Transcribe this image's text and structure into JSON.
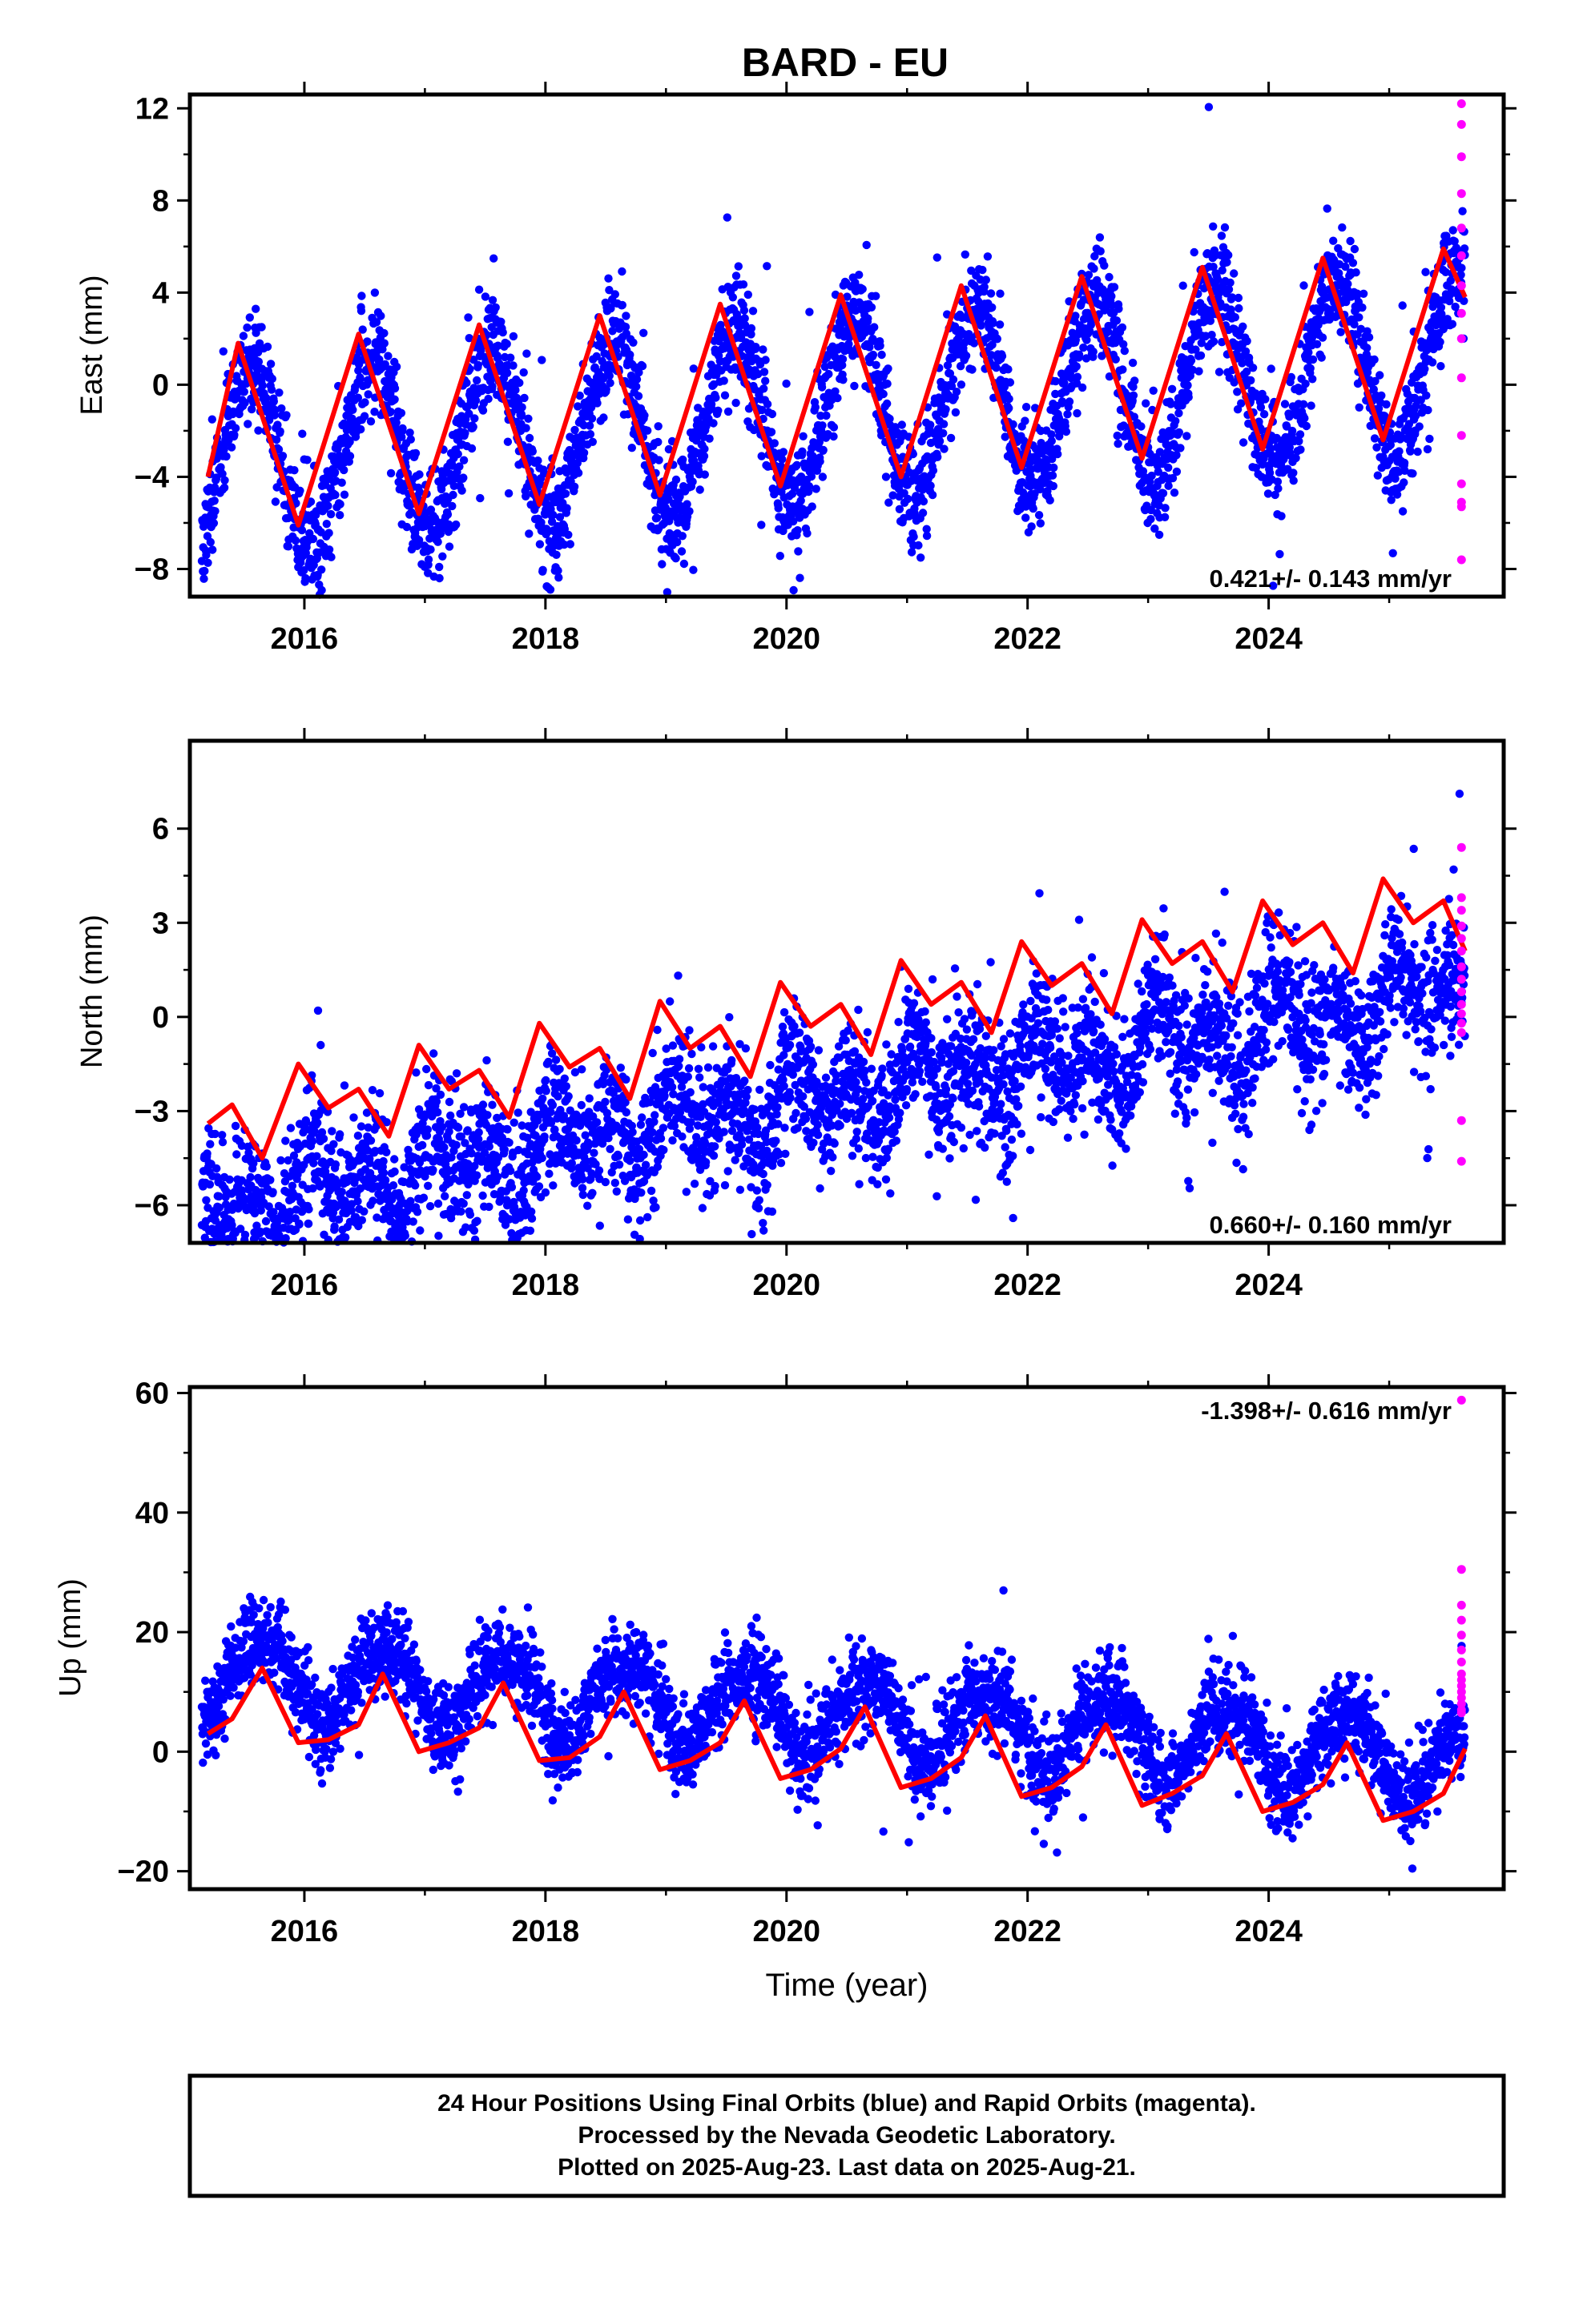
{
  "figure": {
    "title": "BARD - EU",
    "x_axis_label": "Time (year)",
    "footer_lines": [
      "24 Hour Positions Using Final Orbits (blue) and Rapid Orbits (magenta).",
      "Processed by the Nevada Geodetic Laboratory.",
      "Plotted on 2025-Aug-23. Last data on 2025-Aug-21."
    ]
  },
  "colors": {
    "final_orbits": "#0000ff",
    "rapid_orbits": "#ff00ff",
    "fit_curve": "#ff0000",
    "frame": "#000000"
  },
  "chart_data": [
    {
      "type": "scatter",
      "ylabel": "East (mm)",
      "xlabel": "",
      "xlim": [
        2015.05,
        2025.95
      ],
      "ylim": [
        -9.2,
        12.6
      ],
      "xticks": [
        "2016",
        "2018",
        "2020",
        "2022",
        "2024"
      ],
      "yticks": [
        "−8",
        "−4",
        "0",
        "4",
        "8",
        "12"
      ],
      "rate_label": "0.421+/- 0.143 mm/yr",
      "rate_position": "bottom-right",
      "model": {
        "start": 2015.15,
        "end": 2025.63,
        "rate_mm_per_yr": 0.421,
        "offset_mm": -1.3,
        "annual_cos": -3.68,
        "annual_sin": -1.4,
        "semiannual_cos": -0.1,
        "semiannual_sin": 0.1,
        "scatter_mm": 1.2
      },
      "fit_curve": {
        "x": [
          2015.2,
          2015.45,
          2015.95,
          2016.45,
          2016.95,
          2017.45,
          2017.95,
          2018.45,
          2018.95,
          2019.45,
          2019.95,
          2020.45,
          2020.95,
          2021.45,
          2021.95,
          2022.45,
          2022.95,
          2023.45,
          2023.95,
          2024.45,
          2024.95,
          2025.45,
          2025.63
        ],
        "y": [
          -4.0,
          1.8,
          -6.1,
          2.2,
          -5.6,
          2.6,
          -5.2,
          3.0,
          -4.8,
          3.5,
          -4.4,
          3.9,
          -4.0,
          4.3,
          -3.6,
          4.7,
          -3.2,
          5.1,
          -2.8,
          5.5,
          -2.4,
          5.9,
          3.8
        ]
      },
      "rapid_points": {
        "x": [
          2025.6,
          2025.6,
          2025.6,
          2025.6,
          2025.6,
          2025.6,
          2025.6,
          2025.6,
          2025.6,
          2025.6,
          2025.6,
          2025.6,
          2025.6,
          2025.6,
          2025.6
        ],
        "y": [
          12.2,
          11.3,
          9.9,
          8.3,
          6.8,
          5.6,
          4.3,
          3.1,
          2.0,
          0.3,
          -2.2,
          -4.3,
          -5.1,
          -5.3,
          -7.6
        ]
      }
    },
    {
      "type": "scatter",
      "ylabel": "North (mm)",
      "xlabel": "",
      "xlim": [
        2015.05,
        2025.95
      ],
      "ylim": [
        -7.2,
        8.8
      ],
      "xticks": [
        "2016",
        "2018",
        "2020",
        "2022",
        "2024"
      ],
      "yticks": [
        "−6",
        "−3",
        "0",
        "3",
        "6"
      ],
      "rate_label": "0.660+/- 0.160 mm/yr",
      "rate_position": "bottom-right",
      "model": {
        "start": 2015.15,
        "end": 2025.63,
        "rate_mm_per_yr": 0.66,
        "offset_mm": -2.9,
        "annual_cos": 0.3,
        "annual_sin": 0.5,
        "semiannual_cos": 0.75,
        "semiannual_sin": 0.5,
        "scatter_mm": 1.05
      },
      "fit_curve": {
        "x": [
          2015.2,
          2015.4,
          2015.65,
          2015.95,
          2016.2,
          2016.45,
          2016.7,
          2016.95,
          2017.2,
          2017.45,
          2017.7,
          2017.95,
          2018.2,
          2018.45,
          2018.7,
          2018.95,
          2019.2,
          2019.45,
          2019.7,
          2019.95,
          2020.2,
          2020.45,
          2020.7,
          2020.95,
          2021.2,
          2021.45,
          2021.7,
          2021.95,
          2022.2,
          2022.45,
          2022.7,
          2022.95,
          2023.2,
          2023.45,
          2023.7,
          2023.95,
          2024.2,
          2024.45,
          2024.7,
          2024.95,
          2025.2,
          2025.45,
          2025.63
        ],
        "y": [
          -3.4,
          -2.8,
          -4.5,
          -1.5,
          -2.9,
          -2.3,
          -3.8,
          -0.9,
          -2.3,
          -1.7,
          -3.2,
          -0.2,
          -1.6,
          -1.0,
          -2.6,
          0.5,
          -1.0,
          -0.3,
          -1.9,
          1.1,
          -0.3,
          0.4,
          -1.2,
          1.8,
          0.4,
          1.1,
          -0.5,
          2.4,
          1.0,
          1.7,
          0.1,
          3.1,
          1.7,
          2.4,
          0.8,
          3.7,
          2.3,
          3.0,
          1.4,
          4.4,
          3.0,
          3.7,
          2.1
        ]
      },
      "rapid_points": {
        "x": [
          2025.6,
          2025.6,
          2025.6,
          2025.6,
          2025.6,
          2025.6,
          2025.6,
          2025.6,
          2025.6,
          2025.6,
          2025.6,
          2025.6,
          2025.6,
          2025.6,
          2025.6
        ],
        "y": [
          5.4,
          3.8,
          3.4,
          2.9,
          2.5,
          2.1,
          1.6,
          1.2,
          0.8,
          0.4,
          0.1,
          -0.2,
          -0.5,
          -3.3,
          -4.6
        ]
      }
    },
    {
      "type": "scatter",
      "ylabel": "Up (mm)",
      "xlabel": "Time (year)",
      "xlim": [
        2015.05,
        2025.95
      ],
      "ylim": [
        -23,
        61
      ],
      "xticks": [
        "2016",
        "2018",
        "2020",
        "2022",
        "2024"
      ],
      "yticks": [
        "−20",
        "0",
        "20",
        "40",
        "60"
      ],
      "rate_label": "-1.398+/- 0.616 mm/yr",
      "rate_position": "top-right",
      "model": {
        "start": 2015.15,
        "end": 2025.63,
        "rate_mm_per_yr": -1.398,
        "offset_mm": 6.5,
        "annual_cos": -3.5,
        "annual_sin": -5.5,
        "semiannual_cos": 0.3,
        "semiannual_sin": -1.2,
        "scatter_mm": 3.6
      },
      "fit_curve": {
        "x": [
          2015.2,
          2015.4,
          2015.65,
          2015.95,
          2016.2,
          2016.45,
          2016.65,
          2016.95,
          2017.2,
          2017.45,
          2017.65,
          2017.95,
          2018.2,
          2018.45,
          2018.65,
          2018.95,
          2019.2,
          2019.45,
          2019.65,
          2019.95,
          2020.2,
          2020.45,
          2020.65,
          2020.95,
          2021.2,
          2021.45,
          2021.65,
          2021.95,
          2022.2,
          2022.45,
          2022.65,
          2022.95,
          2023.2,
          2023.45,
          2023.65,
          2023.95,
          2024.2,
          2024.45,
          2024.65,
          2024.95,
          2025.2,
          2025.45,
          2025.63
        ],
        "y": [
          3.0,
          5.5,
          14.0,
          1.5,
          2.0,
          4.5,
          13.0,
          0.0,
          1.5,
          4.0,
          11.5,
          -1.5,
          -1.0,
          2.5,
          10.0,
          -3.0,
          -1.5,
          1.5,
          8.5,
          -4.5,
          -3.0,
          0.5,
          7.5,
          -6.0,
          -4.5,
          -1.0,
          6.0,
          -7.5,
          -6.0,
          -2.5,
          4.5,
          -9.0,
          -7.0,
          -4.0,
          3.0,
          -10.0,
          -8.5,
          -5.5,
          1.5,
          -11.5,
          -10.0,
          -7.0,
          0.5
        ]
      },
      "rapid_points": {
        "x": [
          2025.6,
          2025.6,
          2025.6,
          2025.6,
          2025.6,
          2025.6,
          2025.6,
          2025.6,
          2025.6,
          2025.6,
          2025.6,
          2025.6,
          2025.6,
          2025.6,
          2025.6
        ],
        "y": [
          58.8,
          30.5,
          24.5,
          22.0,
          19.5,
          17.0,
          15.0,
          13.0,
          12.0,
          11.0,
          10.0,
          9.0,
          8.0,
          7.0,
          6.5
        ]
      }
    }
  ]
}
